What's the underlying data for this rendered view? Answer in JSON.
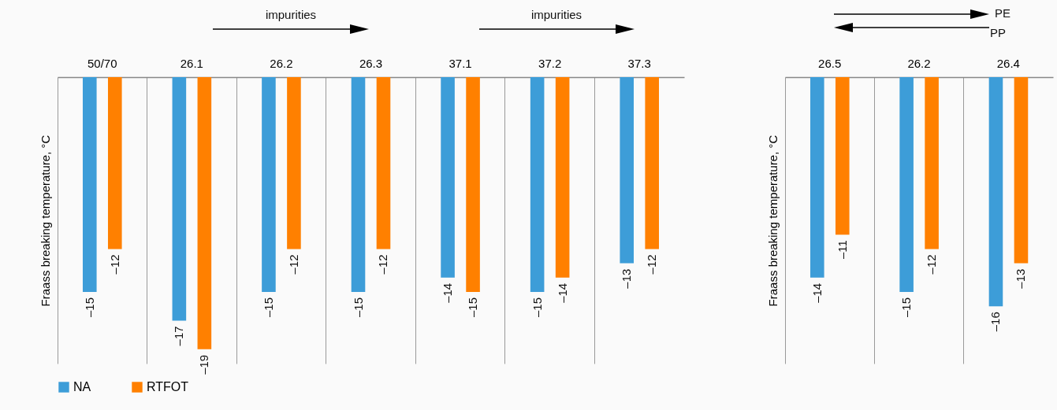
{
  "chart_data": [
    {
      "type": "bar",
      "ylabel": "Fraass breaking temperature, °C",
      "categories": [
        "50/70",
        "26.1",
        "26.2",
        "26.3",
        "37.1",
        "37.2",
        "37.3"
      ],
      "series": [
        {
          "name": "NA",
          "color": "#3d9dd8",
          "values": [
            -15,
            -17,
            -15,
            -15,
            -14,
            -15,
            -13
          ],
          "value_labels": [
            "–15",
            "–17",
            "–15",
            "–15",
            "–14",
            "–15",
            "–13"
          ]
        },
        {
          "name": "RTFOT",
          "color": "#ff8000",
          "values": [
            -12,
            -19,
            -12,
            -12,
            -15,
            -14,
            -12
          ],
          "value_labels": [
            "–12",
            "–19",
            "–12",
            "–12",
            "–15",
            "–14",
            "–12"
          ]
        }
      ],
      "ylim": [
        -20,
        0
      ],
      "tick_labels": "x",
      "grid": "x",
      "legend": "bottom",
      "annotations": [
        "impurities",
        "impurities"
      ]
    },
    {
      "type": "bar",
      "ylabel": "Fraass breaking temperature, °C",
      "categories": [
        "26.5",
        "26.2",
        "26.4"
      ],
      "series": [
        {
          "name": "NA",
          "color": "#3d9dd8",
          "values": [
            -14,
            -15,
            -16
          ],
          "value_labels": [
            "–14",
            "–15",
            "–16"
          ]
        },
        {
          "name": "RTFOT",
          "color": "#ff8000",
          "values": [
            -11,
            -12,
            -13
          ],
          "value_labels": [
            "–11",
            "–12",
            "–13"
          ]
        }
      ],
      "ylim": [
        -20,
        0
      ],
      "tick_labels": "x",
      "grid": "x",
      "annotations": [
        "PE",
        "PP"
      ]
    }
  ]
}
